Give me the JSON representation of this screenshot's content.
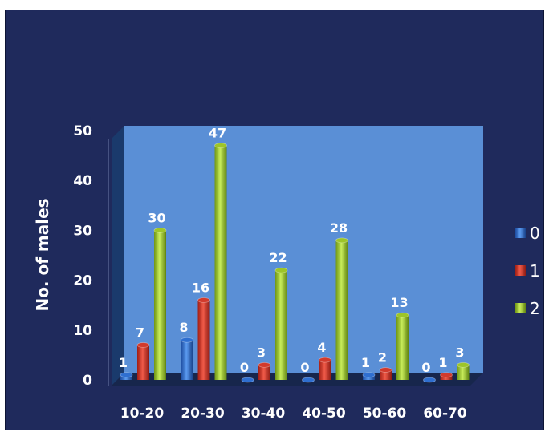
{
  "chart_data": {
    "type": "bar",
    "title": "",
    "xlabel": "",
    "ylabel": "No. of males",
    "categories": [
      "10-20",
      "20-30",
      "30-40",
      "40-50",
      "50-60",
      "60-70"
    ],
    "series": [
      {
        "name": "0",
        "values": [
          1,
          8,
          0,
          0,
          1,
          0
        ]
      },
      {
        "name": "1",
        "values": [
          7,
          16,
          3,
          4,
          2,
          1
        ]
      },
      {
        "name": "2",
        "values": [
          30,
          47,
          22,
          28,
          13,
          3
        ]
      }
    ],
    "ylim": [
      0,
      50
    ],
    "yticks": [
      0,
      10,
      20,
      30,
      40,
      50
    ],
    "legend_position": "right",
    "grid": false,
    "three_d": true
  },
  "colors": {
    "background": "#1f2a5c",
    "plot_wall": "#5a8fd6",
    "plot_side_wall": "#1a3a6c",
    "floor": "#17264c",
    "series": [
      "#2f6fd0",
      "#d23a2c",
      "#9dc528"
    ]
  }
}
